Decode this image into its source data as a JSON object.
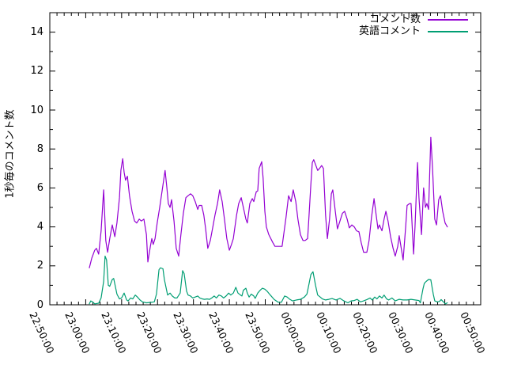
{
  "chart_data": {
    "type": "line",
    "title": "",
    "xlabel": "",
    "ylabel": "1秒毎のコメント数",
    "grid": false,
    "legend_position": "top-right-inside",
    "x_axis": {
      "unit": "minutes_after_22:50:00",
      "range_minutes": [
        0,
        120
      ],
      "tick_minutes": [
        0,
        10,
        20,
        30,
        40,
        50,
        60,
        70,
        80,
        90,
        100,
        110,
        120
      ],
      "tick_labels": [
        "22:50:00",
        "23:00:00",
        "23:10:00",
        "23:20:00",
        "23:30:00",
        "23:40:00",
        "23:50:00",
        "00:00:00",
        "00:10:00",
        "00:20:00",
        "00:30:00",
        "00:40:00",
        "00:50:00"
      ],
      "minor_tick_every_minutes": 2
    },
    "y_axis": {
      "range": [
        0,
        15
      ],
      "ticks": [
        0,
        2,
        4,
        6,
        8,
        10,
        12,
        14
      ],
      "minor_ticks": [
        1,
        3,
        5,
        7,
        9,
        11,
        13
      ]
    },
    "series": [
      {
        "name": "コメント数",
        "color": "#9400d3",
        "points": [
          [
            11.0,
            1.9
          ],
          [
            11.7,
            2.4
          ],
          [
            12.5,
            2.8
          ],
          [
            13.0,
            2.9
          ],
          [
            13.6,
            2.6
          ],
          [
            14.3,
            3.8
          ],
          [
            15.0,
            5.9
          ],
          [
            15.6,
            3.3
          ],
          [
            16.1,
            2.7
          ],
          [
            16.7,
            3.4
          ],
          [
            17.4,
            4.1
          ],
          [
            18.1,
            3.5
          ],
          [
            18.7,
            4.2
          ],
          [
            19.4,
            5.5
          ],
          [
            19.8,
            6.9
          ],
          [
            20.3,
            7.5
          ],
          [
            20.7,
            6.8
          ],
          [
            21.1,
            6.4
          ],
          [
            21.6,
            6.6
          ],
          [
            22.2,
            5.6
          ],
          [
            22.9,
            4.8
          ],
          [
            23.6,
            4.3
          ],
          [
            24.2,
            4.2
          ],
          [
            24.9,
            4.4
          ],
          [
            25.5,
            4.3
          ],
          [
            26.2,
            4.4
          ],
          [
            26.9,
            3.6
          ],
          [
            27.3,
            2.2
          ],
          [
            28.0,
            3.0
          ],
          [
            28.4,
            3.4
          ],
          [
            28.8,
            3.1
          ],
          [
            29.3,
            3.4
          ],
          [
            29.9,
            4.2
          ],
          [
            30.6,
            5.0
          ],
          [
            31.3,
            5.9
          ],
          [
            32.1,
            6.9
          ],
          [
            32.6,
            6.0
          ],
          [
            33.0,
            5.2
          ],
          [
            33.5,
            5.0
          ],
          [
            33.9,
            5.4
          ],
          [
            34.6,
            4.3
          ],
          [
            35.2,
            2.9
          ],
          [
            35.9,
            2.5
          ],
          [
            36.5,
            3.6
          ],
          [
            37.2,
            4.7
          ],
          [
            37.9,
            5.5
          ],
          [
            38.5,
            5.6
          ],
          [
            39.2,
            5.7
          ],
          [
            39.8,
            5.6
          ],
          [
            40.5,
            5.3
          ],
          [
            41.2,
            4.9
          ],
          [
            41.6,
            5.1
          ],
          [
            42.3,
            5.1
          ],
          [
            42.9,
            4.6
          ],
          [
            43.4,
            3.9
          ],
          [
            44.0,
            2.9
          ],
          [
            44.7,
            3.3
          ],
          [
            45.4,
            4.0
          ],
          [
            46.0,
            4.6
          ],
          [
            46.7,
            5.2
          ],
          [
            47.3,
            5.9
          ],
          [
            48.0,
            5.3
          ],
          [
            48.7,
            4.3
          ],
          [
            49.3,
            3.4
          ],
          [
            50.0,
            2.8
          ],
          [
            50.6,
            3.1
          ],
          [
            51.1,
            3.4
          ],
          [
            52.0,
            4.6
          ],
          [
            52.6,
            5.2
          ],
          [
            53.3,
            5.5
          ],
          [
            53.9,
            5.0
          ],
          [
            54.6,
            4.4
          ],
          [
            55.0,
            4.2
          ],
          [
            55.7,
            5.2
          ],
          [
            56.4,
            5.45
          ],
          [
            56.8,
            5.3
          ],
          [
            57.5,
            5.8
          ],
          [
            57.9,
            5.85
          ],
          [
            58.3,
            7.0
          ],
          [
            59.0,
            7.35
          ],
          [
            59.4,
            6.5
          ],
          [
            59.9,
            4.8
          ],
          [
            60.3,
            4.0
          ],
          [
            61.0,
            3.6
          ],
          [
            62.1,
            3.2
          ],
          [
            62.7,
            3.0
          ],
          [
            63.8,
            3.0
          ],
          [
            64.7,
            3.0
          ],
          [
            65.8,
            4.5
          ],
          [
            66.5,
            5.6
          ],
          [
            67.2,
            5.3
          ],
          [
            67.8,
            5.9
          ],
          [
            68.5,
            5.3
          ],
          [
            69.1,
            4.4
          ],
          [
            69.8,
            3.6
          ],
          [
            70.5,
            3.3
          ],
          [
            71.1,
            3.3
          ],
          [
            71.8,
            3.4
          ],
          [
            72.2,
            4.6
          ],
          [
            72.7,
            6.2
          ],
          [
            73.1,
            7.3
          ],
          [
            73.5,
            7.45
          ],
          [
            74.2,
            7.1
          ],
          [
            74.6,
            6.9
          ],
          [
            75.1,
            7.0
          ],
          [
            75.7,
            7.15
          ],
          [
            76.2,
            7.0
          ],
          [
            76.8,
            4.6
          ],
          [
            77.3,
            3.4
          ],
          [
            77.9,
            4.4
          ],
          [
            78.4,
            5.7
          ],
          [
            78.8,
            5.9
          ],
          [
            79.5,
            4.8
          ],
          [
            80.1,
            3.9
          ],
          [
            80.8,
            4.3
          ],
          [
            81.5,
            4.7
          ],
          [
            82.1,
            4.8
          ],
          [
            82.8,
            4.4
          ],
          [
            83.4,
            3.95
          ],
          [
            84.1,
            4.1
          ],
          [
            84.8,
            4.0
          ],
          [
            85.4,
            3.8
          ],
          [
            86.1,
            3.75
          ],
          [
            86.7,
            3.2
          ],
          [
            87.4,
            2.7
          ],
          [
            88.3,
            2.7
          ],
          [
            88.9,
            3.3
          ],
          [
            89.6,
            4.5
          ],
          [
            90.3,
            5.45
          ],
          [
            90.9,
            4.6
          ],
          [
            91.4,
            3.9
          ],
          [
            91.8,
            4.1
          ],
          [
            92.5,
            3.8
          ],
          [
            93.1,
            4.4
          ],
          [
            93.6,
            4.8
          ],
          [
            94.2,
            4.3
          ],
          [
            94.9,
            3.5
          ],
          [
            95.6,
            2.9
          ],
          [
            96.2,
            2.5
          ],
          [
            96.9,
            3.0
          ],
          [
            97.3,
            3.55
          ],
          [
            98.0,
            2.75
          ],
          [
            98.4,
            2.3
          ],
          [
            99.1,
            4.0
          ],
          [
            99.5,
            5.1
          ],
          [
            100.2,
            5.2
          ],
          [
            100.6,
            5.2
          ],
          [
            101.3,
            2.6
          ],
          [
            101.7,
            4.0
          ],
          [
            102.4,
            7.3
          ],
          [
            102.8,
            5.5
          ],
          [
            103.5,
            3.6
          ],
          [
            104.1,
            6.0
          ],
          [
            104.6,
            5.0
          ],
          [
            105.0,
            5.2
          ],
          [
            105.5,
            4.9
          ],
          [
            106.1,
            8.6
          ],
          [
            106.6,
            7.0
          ],
          [
            107.2,
            4.4
          ],
          [
            107.7,
            4.1
          ],
          [
            108.3,
            5.4
          ],
          [
            108.8,
            5.6
          ],
          [
            109.4,
            4.8
          ],
          [
            110.1,
            4.2
          ],
          [
            110.7,
            4.0
          ]
        ]
      },
      {
        "name": "英語コメント",
        "color": "#009e73",
        "points": [
          [
            11.0,
            0.05
          ],
          [
            11.4,
            0.2
          ],
          [
            11.9,
            0.15
          ],
          [
            12.5,
            0.05
          ],
          [
            13.6,
            0.08
          ],
          [
            14.3,
            0.35
          ],
          [
            15.0,
            1.2
          ],
          [
            15.4,
            2.5
          ],
          [
            15.8,
            2.3
          ],
          [
            16.3,
            1.0
          ],
          [
            16.7,
            0.95
          ],
          [
            17.4,
            1.3
          ],
          [
            17.8,
            1.35
          ],
          [
            18.3,
            0.9
          ],
          [
            18.7,
            0.55
          ],
          [
            19.4,
            0.3
          ],
          [
            20.0,
            0.35
          ],
          [
            20.7,
            0.6
          ],
          [
            21.4,
            0.25
          ],
          [
            21.8,
            0.2
          ],
          [
            22.5,
            0.35
          ],
          [
            23.1,
            0.3
          ],
          [
            23.8,
            0.5
          ],
          [
            24.4,
            0.4
          ],
          [
            25.1,
            0.25
          ],
          [
            25.8,
            0.15
          ],
          [
            26.9,
            0.1
          ],
          [
            28.0,
            0.12
          ],
          [
            29.1,
            0.15
          ],
          [
            29.7,
            0.55
          ],
          [
            30.4,
            1.8
          ],
          [
            30.8,
            1.9
          ],
          [
            31.5,
            1.85
          ],
          [
            31.9,
            1.3
          ],
          [
            32.8,
            0.5
          ],
          [
            33.5,
            0.6
          ],
          [
            34.1,
            0.45
          ],
          [
            34.8,
            0.35
          ],
          [
            35.4,
            0.35
          ],
          [
            36.3,
            0.6
          ],
          [
            37.0,
            1.75
          ],
          [
            37.4,
            1.6
          ],
          [
            38.1,
            0.7
          ],
          [
            38.5,
            0.5
          ],
          [
            39.2,
            0.45
          ],
          [
            39.8,
            0.35
          ],
          [
            40.5,
            0.4
          ],
          [
            41.2,
            0.45
          ],
          [
            41.8,
            0.35
          ],
          [
            42.5,
            0.3
          ],
          [
            43.1,
            0.28
          ],
          [
            43.8,
            0.3
          ],
          [
            44.5,
            0.28
          ],
          [
            45.1,
            0.35
          ],
          [
            45.8,
            0.45
          ],
          [
            46.4,
            0.35
          ],
          [
            47.1,
            0.5
          ],
          [
            47.8,
            0.45
          ],
          [
            48.4,
            0.35
          ],
          [
            49.1,
            0.45
          ],
          [
            49.8,
            0.6
          ],
          [
            50.4,
            0.5
          ],
          [
            51.1,
            0.6
          ],
          [
            51.8,
            0.9
          ],
          [
            52.4,
            0.6
          ],
          [
            53.1,
            0.5
          ],
          [
            53.5,
            0.45
          ],
          [
            53.9,
            0.75
          ],
          [
            54.6,
            0.85
          ],
          [
            55.0,
            0.6
          ],
          [
            55.5,
            0.4
          ],
          [
            56.1,
            0.55
          ],
          [
            56.8,
            0.45
          ],
          [
            57.2,
            0.33
          ],
          [
            57.9,
            0.6
          ],
          [
            58.6,
            0.75
          ],
          [
            59.2,
            0.85
          ],
          [
            59.9,
            0.8
          ],
          [
            60.5,
            0.7
          ],
          [
            61.4,
            0.5
          ],
          [
            62.5,
            0.27
          ],
          [
            63.6,
            0.13
          ],
          [
            64.5,
            0.13
          ],
          [
            65.4,
            0.45
          ],
          [
            66.1,
            0.4
          ],
          [
            66.7,
            0.3
          ],
          [
            67.6,
            0.2
          ],
          [
            68.7,
            0.25
          ],
          [
            69.8,
            0.28
          ],
          [
            70.9,
            0.4
          ],
          [
            71.6,
            0.55
          ],
          [
            72.0,
            0.9
          ],
          [
            72.7,
            1.55
          ],
          [
            73.3,
            1.7
          ],
          [
            74.0,
            1.0
          ],
          [
            74.6,
            0.5
          ],
          [
            75.3,
            0.4
          ],
          [
            75.9,
            0.3
          ],
          [
            76.8,
            0.25
          ],
          [
            77.7,
            0.28
          ],
          [
            78.6,
            0.32
          ],
          [
            79.7,
            0.25
          ],
          [
            80.8,
            0.33
          ],
          [
            81.9,
            0.2
          ],
          [
            83.0,
            0.1
          ],
          [
            83.9,
            0.2
          ],
          [
            84.8,
            0.22
          ],
          [
            85.6,
            0.28
          ],
          [
            86.5,
            0.15
          ],
          [
            87.4,
            0.2
          ],
          [
            88.3,
            0.27
          ],
          [
            89.2,
            0.35
          ],
          [
            89.8,
            0.25
          ],
          [
            90.5,
            0.4
          ],
          [
            91.1,
            0.3
          ],
          [
            91.8,
            0.45
          ],
          [
            92.5,
            0.35
          ],
          [
            93.1,
            0.5
          ],
          [
            93.8,
            0.3
          ],
          [
            94.4,
            0.25
          ],
          [
            95.3,
            0.35
          ],
          [
            96.2,
            0.2
          ],
          [
            97.3,
            0.28
          ],
          [
            98.4,
            0.25
          ],
          [
            99.5,
            0.25
          ],
          [
            100.6,
            0.28
          ],
          [
            101.7,
            0.25
          ],
          [
            102.8,
            0.22
          ],
          [
            103.2,
            0.1
          ],
          [
            103.9,
            0.8
          ],
          [
            104.3,
            1.1
          ],
          [
            104.8,
            1.2
          ],
          [
            105.5,
            1.3
          ],
          [
            106.1,
            1.28
          ],
          [
            106.8,
            0.55
          ],
          [
            107.2,
            0.2
          ],
          [
            107.9,
            0.15
          ],
          [
            108.5,
            0.17
          ],
          [
            109.0,
            0.27
          ],
          [
            109.6,
            0.15
          ],
          [
            110.2,
            0.05
          ],
          [
            110.7,
            0.1
          ]
        ]
      }
    ],
    "colors": {
      "axis": "#000000",
      "text": "#000000",
      "background": "#ffffff"
    }
  }
}
